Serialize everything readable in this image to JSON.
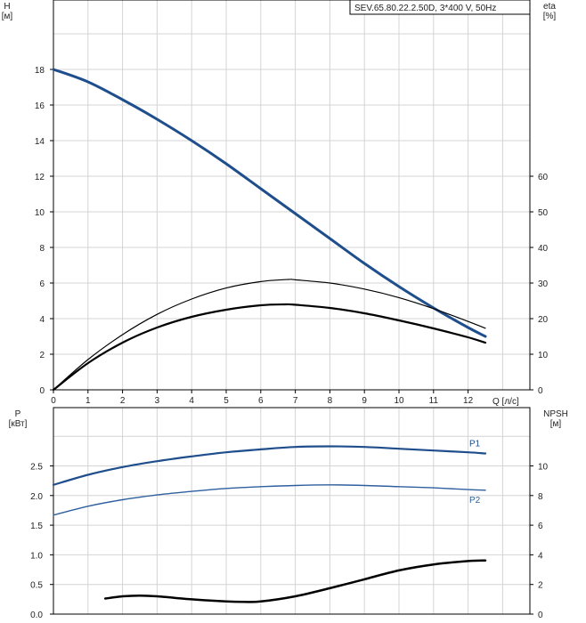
{
  "chart_data": [
    {
      "type": "line",
      "title": "SEV.65.80.22.2.50D, 3*400 V, 50Hz",
      "xlabel": "Q [л/с]",
      "ylabel_left": "H\n[м]",
      "ylabel_right": "eta\n[%]",
      "xlim": [
        0,
        13
      ],
      "ylim_left": [
        0,
        20
      ],
      "ylim_right": [
        0,
        70
      ],
      "x_ticks": [
        0,
        1,
        2,
        3,
        4,
        5,
        6,
        7,
        8,
        9,
        10,
        11,
        12
      ],
      "y_ticks_left": [
        0,
        2,
        4,
        6,
        8,
        10,
        12,
        14,
        16,
        18
      ],
      "y_ticks_right": [
        0,
        10,
        20,
        30,
        40,
        50,
        60
      ],
      "grid": true,
      "series": [
        {
          "axis": "left",
          "color": "#1f4e8c",
          "width": 3,
          "x": [
            0,
            1,
            2,
            3,
            4,
            5,
            6,
            7,
            8,
            9,
            10,
            11,
            12,
            12.5
          ],
          "y": [
            18,
            17.3,
            16.3,
            15.2,
            14.0,
            12.7,
            11.3,
            9.9,
            8.5,
            7.1,
            5.8,
            4.6,
            3.5,
            3.0
          ]
        },
        {
          "axis": "left",
          "color": "#000000",
          "width": 2.2,
          "x": [
            0,
            1,
            2,
            3,
            4,
            5,
            6,
            6.7,
            7,
            8,
            9,
            10,
            11,
            12,
            12.5
          ],
          "y": [
            0,
            1.5,
            2.65,
            3.5,
            4.1,
            4.5,
            4.75,
            4.8,
            4.78,
            4.6,
            4.3,
            3.9,
            3.45,
            2.95,
            2.65
          ]
        },
        {
          "axis": "right",
          "color": "#000000",
          "width": 1.2,
          "x": [
            0,
            1,
            2,
            3,
            4,
            5,
            6,
            6.8,
            7,
            8,
            9,
            10,
            11,
            12,
            12.5
          ],
          "y": [
            0,
            8.5,
            15.5,
            21.2,
            25.5,
            28.6,
            30.4,
            31.0,
            30.9,
            30.0,
            28.3,
            25.9,
            22.8,
            19.2,
            17.3
          ]
        }
      ]
    },
    {
      "type": "line",
      "ylabel_left": "P\n[кВт]",
      "ylabel_right": "NPSH\n[м]",
      "xlim": [
        0,
        13
      ],
      "ylim_left": [
        0,
        3.0
      ],
      "ylim_right": [
        0,
        12
      ],
      "y_ticks_left": [
        0.0,
        0.5,
        1.0,
        1.5,
        2.0,
        2.5
      ],
      "y_ticks_left_labels": [
        "0.0",
        "0.5",
        "1.0",
        "1.5",
        "2.0",
        "2.5"
      ],
      "y_ticks_right": [
        0,
        2,
        4,
        6,
        8,
        10
      ],
      "grid": true,
      "series": [
        {
          "name": "P1",
          "axis": "left",
          "color": "#1f4e8c",
          "width": 2.2,
          "x": [
            0,
            1,
            2,
            3,
            4,
            5,
            6,
            7,
            8,
            9,
            10,
            11,
            12,
            12.5
          ],
          "y": [
            2.18,
            2.35,
            2.48,
            2.58,
            2.66,
            2.73,
            2.78,
            2.82,
            2.83,
            2.82,
            2.79,
            2.76,
            2.73,
            2.71
          ]
        },
        {
          "name": "P2",
          "axis": "left",
          "color": "#2e5f9e",
          "width": 1.4,
          "x": [
            0,
            1,
            2,
            3,
            4,
            5,
            6,
            7,
            8,
            9,
            10,
            11,
            12,
            12.5
          ],
          "y": [
            1.67,
            1.82,
            1.93,
            2.01,
            2.07,
            2.12,
            2.15,
            2.17,
            2.18,
            2.17,
            2.15,
            2.13,
            2.1,
            2.09
          ]
        },
        {
          "axis": "right",
          "color": "#000000",
          "width": 2.5,
          "x": [
            1.5,
            2,
            2.5,
            3,
            4,
            5,
            5.5,
            6,
            7,
            8,
            9,
            10,
            11,
            12,
            12.5
          ],
          "y": [
            1.05,
            1.2,
            1.25,
            1.2,
            1.0,
            0.85,
            0.82,
            0.85,
            1.2,
            1.75,
            2.35,
            2.95,
            3.35,
            3.58,
            3.62
          ]
        }
      ]
    }
  ]
}
